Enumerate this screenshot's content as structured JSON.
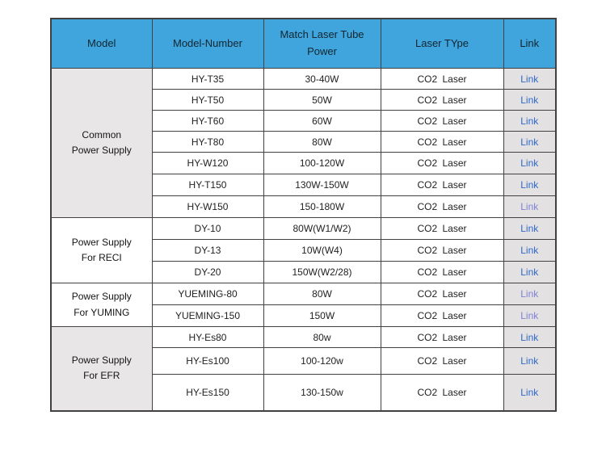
{
  "colors": {
    "header_bg": "#3FA5DC",
    "header_text": "#122530",
    "border_dark": "#414141",
    "group_shaded_bg": "#E8E6E7",
    "link_cell_bg": "#E3E1E2",
    "link_color": "#2E68C8",
    "link_visited_color": "#7F82D6",
    "body_text": "#222222"
  },
  "table": {
    "headers": [
      "Model",
      "Model-Number",
      "Match Laser Tube Power",
      "Laser TYpe",
      "Link"
    ],
    "groups": [
      {
        "label": "Common\nPower Supply",
        "shaded": true,
        "rows": [
          {
            "model_number": "HY-T35",
            "power": "30-40W",
            "laser_type": "CO2 Laser",
            "link_label": "Link",
            "visited": false
          },
          {
            "model_number": "HY-T50",
            "power": "50W",
            "laser_type": "CO2 Laser",
            "link_label": "Link",
            "visited": false
          },
          {
            "model_number": "HY-T60",
            "power": "60W",
            "laser_type": "CO2 Laser",
            "link_label": "Link",
            "visited": false
          },
          {
            "model_number": "HY-T80",
            "power": "80W",
            "laser_type": "CO2 Laser",
            "link_label": "Link",
            "visited": false
          },
          {
            "model_number": "HY-W120",
            "power": "100-120W",
            "laser_type": "CO2 Laser",
            "link_label": "Link",
            "visited": false
          },
          {
            "model_number": "HY-T150",
            "power": "130W-150W",
            "laser_type": "CO2 Laser",
            "link_label": "Link",
            "visited": false
          },
          {
            "model_number": "HY-W150",
            "power": "150-180W",
            "laser_type": "CO2 Laser",
            "link_label": "Link",
            "visited": true
          }
        ]
      },
      {
        "label": "Power Supply\nFor RECI",
        "shaded": false,
        "rows": [
          {
            "model_number": "DY-10",
            "power": "80W(W1/W2)",
            "laser_type": "CO2 Laser",
            "link_label": "Link",
            "visited": false
          },
          {
            "model_number": "DY-13",
            "power": "10W(W4)",
            "laser_type": "CO2 Laser",
            "link_label": "Link",
            "visited": false
          },
          {
            "model_number": "DY-20",
            "power": "150W(W2/28)",
            "laser_type": "CO2 Laser",
            "link_label": "Link",
            "visited": false
          }
        ]
      },
      {
        "label": "Power Supply\nFor YUMING",
        "shaded": false,
        "rows": [
          {
            "model_number": "YUEMING-80",
            "power": "80W",
            "laser_type": "CO2 Laser",
            "link_label": "Link",
            "visited": true
          },
          {
            "model_number": "YUEMING-150",
            "power": "150W",
            "laser_type": "CO2 Laser",
            "link_label": "Link",
            "visited": true
          }
        ]
      },
      {
        "label": "Power Supply\nFor EFR",
        "shaded": true,
        "rows": [
          {
            "model_number": "HY-Es80",
            "power": "80w",
            "laser_type": "CO2 Laser",
            "link_label": "Link",
            "visited": false
          },
          {
            "model_number": "HY-Es100",
            "power": "100-120w",
            "laser_type": "CO2 Laser",
            "link_label": "Link",
            "visited": false
          },
          {
            "model_number": "HY-Es150",
            "power": "130-150w",
            "laser_type": "CO2 Laser",
            "link_label": "Link",
            "visited": false
          }
        ]
      }
    ]
  }
}
